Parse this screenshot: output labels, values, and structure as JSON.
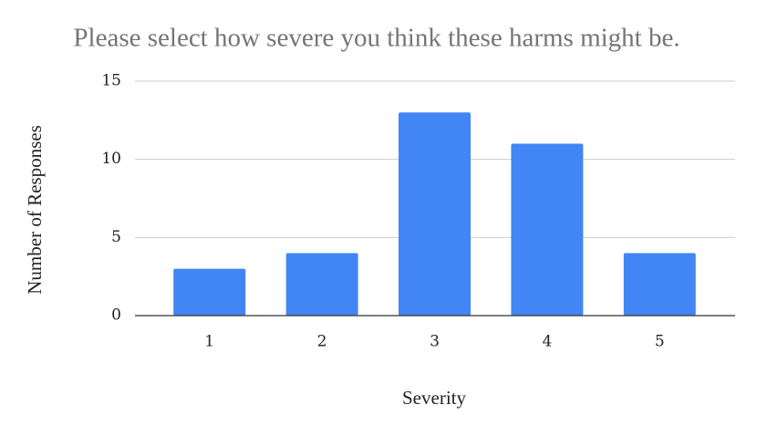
{
  "chart_data": {
    "type": "bar",
    "title": "Please select how severe you think these harms might be.",
    "x_label": "Severity",
    "y_label": "Number of Responses",
    "categories": [
      "1",
      "2",
      "3",
      "4",
      "5"
    ],
    "values": [
      3,
      4,
      13,
      11,
      4
    ],
    "color": "#4285f4",
    "ylim": [
      0,
      15
    ],
    "yticks": [
      0,
      5,
      10,
      15
    ],
    "grid": true
  }
}
